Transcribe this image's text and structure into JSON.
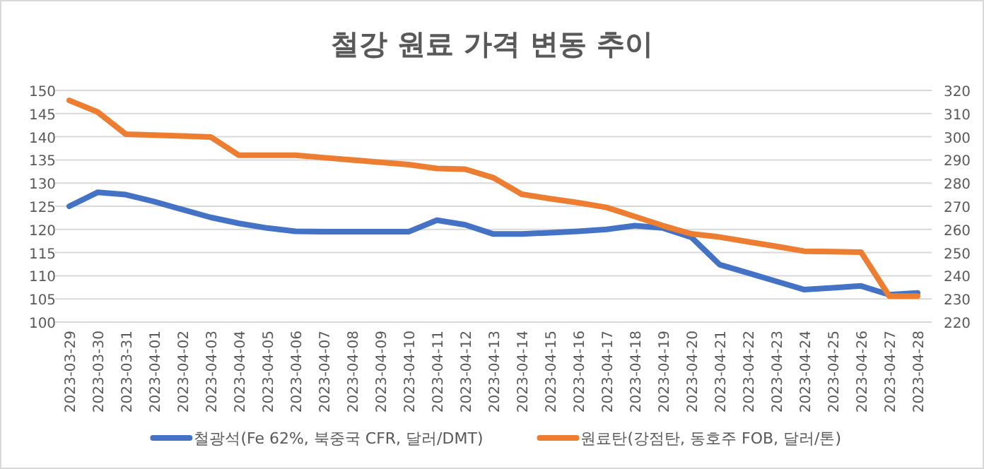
{
  "chart_data": {
    "type": "line",
    "title": "철강 원료 가격 변동 추이",
    "categories": [
      "2023-03-29",
      "2023-03-30",
      "2023-03-31",
      "2023-04-01",
      "2023-04-02",
      "2023-04-03",
      "2023-04-04",
      "2023-04-05",
      "2023-04-06",
      "2023-04-07",
      "2023-04-08",
      "2023-04-09",
      "2023-04-10",
      "2023-04-11",
      "2023-04-12",
      "2023-04-13",
      "2023-04-14",
      "2023-04-15",
      "2023-04-16",
      "2023-04-17",
      "2023-04-18",
      "2023-04-19",
      "2023-04-20",
      "2023-04-21",
      "2023-04-22",
      "2023-04-23",
      "2023-04-24",
      "2023-04-25",
      "2023-04-26",
      "2023-04-27",
      "2023-04-28"
    ],
    "series": [
      {
        "name": "철광석(Fe 62%, 북중국 CFR, 달러/DMT)",
        "color": "#4472c4",
        "values": [
          125,
          128,
          127.5,
          126,
          124.3,
          122.6,
          121.3,
          120.3,
          119.6,
          119.5,
          119.5,
          119.5,
          119.5,
          122,
          121,
          119,
          119,
          119.3,
          119.6,
          120,
          120.8,
          120.3,
          118.3,
          112.4,
          110.6,
          108.8,
          107,
          107.4,
          107.8,
          105.9,
          106.3
        ]
      },
      {
        "name": "원료탄(강점탄, 동호주 FOB, 달러/톤)",
        "color": "#ed7d31",
        "axis": "y2",
        "values": [
          315.7,
          310.7,
          301.1,
          300.7,
          300.3,
          299.9,
          292,
          292,
          292,
          291,
          290,
          289,
          288,
          286.3,
          286,
          282.3,
          275.2,
          273.3,
          271.5,
          269.5,
          265.6,
          261.6,
          258.1,
          256.7,
          254.7,
          252.7,
          250.6,
          250.4,
          250.2,
          231.2,
          231.2
        ]
      }
    ],
    "ylim": [
      100,
      150
    ],
    "yticks": [
      100,
      105,
      110,
      115,
      120,
      125,
      130,
      135,
      140,
      145,
      150
    ],
    "y2lim": [
      220,
      320
    ],
    "y2ticks": [
      220,
      230,
      240,
      250,
      260,
      270,
      280,
      290,
      300,
      310,
      320
    ],
    "grid": "y",
    "legend": "bottom",
    "marker": "none",
    "line_style": "solid"
  }
}
